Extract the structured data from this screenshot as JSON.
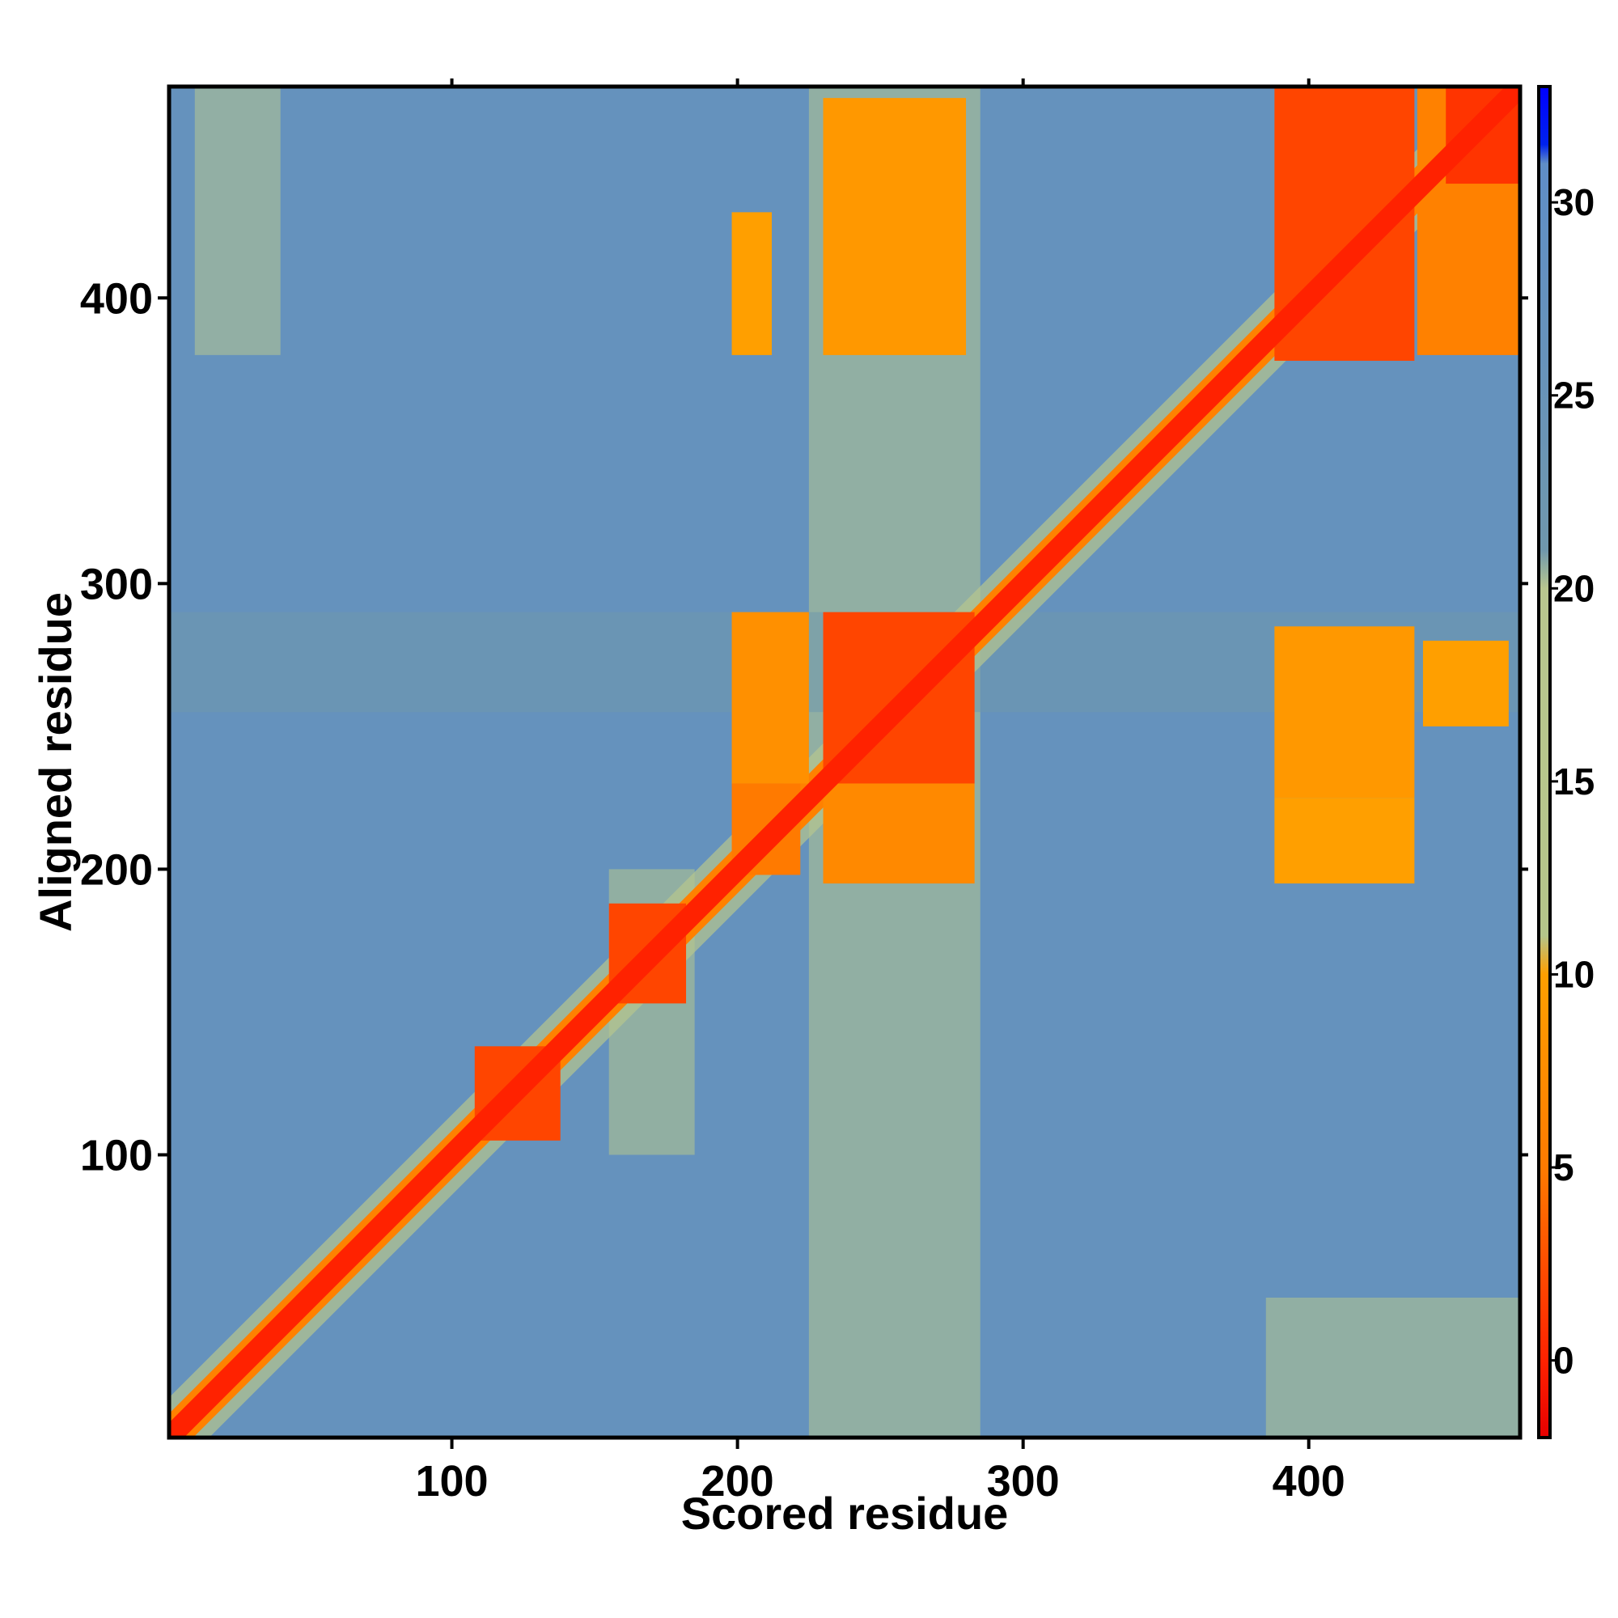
{
  "chart_data": {
    "type": "heatmap",
    "title": "",
    "xlabel": "Scored residue",
    "ylabel": "Aligned residue",
    "xlim": [
      1,
      474
    ],
    "ylim": [
      1,
      474
    ],
    "x_ticks": [
      100,
      200,
      300,
      400
    ],
    "y_ticks": [
      100,
      200,
      300,
      400
    ],
    "grid": false,
    "colorbar": {
      "range": [
        -2,
        33
      ],
      "ticks": [
        0,
        5,
        10,
        15,
        20,
        25,
        30
      ],
      "stops": [
        {
          "value": -2,
          "color": "#e60000"
        },
        {
          "value": 0,
          "color": "#ff2200"
        },
        {
          "value": 5,
          "color": "#ff7a00"
        },
        {
          "value": 10,
          "color": "#ff9f00"
        },
        {
          "value": 11,
          "color": "#b4c58a"
        },
        {
          "value": 20,
          "color": "#b8c68f"
        },
        {
          "value": 21,
          "color": "#6f97ad"
        },
        {
          "value": 31,
          "color": "#5f8ec7"
        },
        {
          "value": 31.5,
          "color": "#0022ee"
        },
        {
          "value": 33,
          "color": "#0000ff"
        }
      ]
    },
    "background_value": 27,
    "diagonal_value": 0,
    "blocks": [
      {
        "x": [
          108,
          138
        ],
        "y": [
          105,
          138
        ],
        "value": 2
      },
      {
        "x": [
          155,
          182
        ],
        "y": [
          153,
          188
        ],
        "value": 2
      },
      {
        "x": [
          198,
          222
        ],
        "y": [
          198,
          230
        ],
        "value": 5
      },
      {
        "x": [
          230,
          283
        ],
        "y": [
          230,
          290
        ],
        "value": 2
      },
      {
        "x": [
          230,
          283
        ],
        "y": [
          195,
          230
        ],
        "value": 7
      },
      {
        "x": [
          198,
          225
        ],
        "y": [
          230,
          290
        ],
        "value": 8
      },
      {
        "x": [
          388,
          437
        ],
        "y": [
          378,
          475
        ],
        "value": 2
      },
      {
        "x": [
          438,
          475
        ],
        "y": [
          380,
          475
        ],
        "value": 6
      },
      {
        "x": [
          448,
          475
        ],
        "y": [
          440,
          475
        ],
        "value": 1
      },
      {
        "x": [
          230,
          280
        ],
        "y": [
          380,
          470
        ],
        "value": 9
      },
      {
        "x": [
          198,
          212
        ],
        "y": [
          380,
          430
        ],
        "value": 10
      },
      {
        "x": [
          388,
          437
        ],
        "y": [
          225,
          285
        ],
        "value": 9
      },
      {
        "x": [
          388,
          437
        ],
        "y": [
          195,
          225
        ],
        "value": 10
      },
      {
        "x": [
          440,
          470
        ],
        "y": [
          250,
          280
        ],
        "value": 10
      }
    ],
    "bands": [
      {
        "x": [
          225,
          285
        ],
        "y": [
          1,
          474
        ],
        "value": 18
      },
      {
        "x": [
          155,
          185
        ],
        "y": [
          100,
          200
        ],
        "value": 17
      },
      {
        "x": [
          385,
          475
        ],
        "y": [
          1,
          50
        ],
        "value": 18
      },
      {
        "x": [
          10,
          40
        ],
        "y": [
          380,
          474
        ],
        "value": 20
      },
      {
        "x": [
          1,
          474
        ],
        "y": [
          255,
          290
        ],
        "value": 21
      }
    ]
  }
}
